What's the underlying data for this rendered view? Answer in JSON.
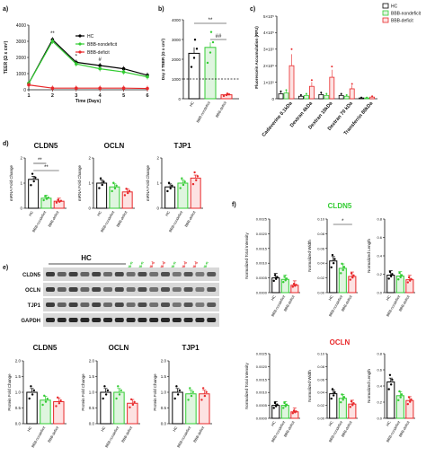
{
  "colors": {
    "hc": "#000000",
    "nondeficit": "#33cc33",
    "deficit": "#e8282a"
  },
  "series_names": {
    "hc": "HC",
    "nondeficit": "BBB-nondeficit",
    "deficit": "BBB-deficit"
  },
  "xticks_groups": [
    "HC",
    "BBB-nondeficit",
    "BBB-deficit"
  ],
  "blot": {
    "group_label": "HC",
    "lane_labels": [
      "BBB-n",
      "BBB-n",
      "BBB-d",
      "BBB-d",
      "BBB-n",
      "BBB-d",
      "BBB-d",
      "BBB-n"
    ],
    "lane_colors": [
      "#33cc33",
      "#33cc33",
      "#e8282a",
      "#e8282a",
      "#33cc33",
      "#e8282a",
      "#e8282a",
      "#33cc33"
    ],
    "rows": [
      "CLDN5",
      "OCLN",
      "TJP1",
      "GAPDH"
    ]
  },
  "chart_data": [
    {
      "panel": "a",
      "type": "line",
      "xlabel": "Time (Days)",
      "ylabel": "TEER (Ω x cm²)",
      "x": [
        1,
        2,
        3,
        4,
        5,
        6
      ],
      "xlim": [
        1,
        6
      ],
      "ylim": [
        0,
        4000
      ],
      "yticks": [
        0,
        1000,
        2000,
        3000,
        4000
      ],
      "legend": "top-left",
      "series": [
        {
          "name": "HC",
          "values": [
            400,
            3100,
            1700,
            1500,
            1300,
            900
          ]
        },
        {
          "name": "BBB-nondeficit",
          "values": [
            400,
            3000,
            1600,
            1300,
            1100,
            800
          ]
        },
        {
          "name": "BBB-deficit",
          "values": [
            300,
            100,
            100,
            100,
            100,
            80
          ]
        }
      ],
      "annotations": [
        {
          "x": 2,
          "text": "**"
        },
        {
          "x": 3,
          "text": "*"
        },
        {
          "x": 4,
          "text": "#"
        }
      ]
    },
    {
      "panel": "b",
      "type": "bar",
      "ylabel": "Day 2 TEER (Ω x cm²)",
      "ylim": [
        0,
        4000
      ],
      "yticks": [
        0,
        1000,
        2000,
        3000,
        4000
      ],
      "categories": [
        "HC",
        "BBB-nondeficit",
        "BBB-deficit"
      ],
      "values": [
        2300,
        2600,
        200
      ],
      "errors": [
        300,
        250,
        60
      ],
      "threshold": 1000,
      "annotations": [
        "**",
        "##"
      ]
    },
    {
      "panel": "c",
      "type": "bar",
      "ylabel": "Fluorescein Accumulation (RFU)",
      "ylim": [
        0,
        500000
      ],
      "yticks_labels": [
        "0",
        "1×10⁵",
        "2×10⁵",
        "3×10⁵",
        "4×10⁵",
        "5×10⁵"
      ],
      "categories": [
        "Cadaverine 0.1kDa",
        "Dextran 4kDa",
        "Dextran 10kDa",
        "Dextran 70 kDa",
        "Transferrin 80kDa"
      ],
      "legend": "top-right",
      "series": [
        {
          "name": "HC",
          "values": [
            30000,
            15000,
            25000,
            20000,
            5000
          ]
        },
        {
          "name": "BBB-nondeficit",
          "values": [
            35000,
            20000,
            20000,
            15000,
            5000
          ]
        },
        {
          "name": "BBB-deficit",
          "values": [
            200000,
            75000,
            130000,
            60000,
            10000
          ]
        }
      ]
    },
    {
      "panel": "d",
      "type": "bar",
      "title": "CLDN5",
      "ylabel": "mRNA Fold Change",
      "ylim": [
        0,
        2
      ],
      "values": [
        1.15,
        0.4,
        0.28
      ],
      "annotations": [
        "**",
        "**"
      ]
    },
    {
      "panel": "d",
      "type": "bar",
      "title": "OCLN",
      "ylabel": "mRNA Fold Change",
      "ylim": [
        0,
        2
      ],
      "values": [
        1.0,
        0.85,
        0.65
      ]
    },
    {
      "panel": "d",
      "type": "bar",
      "title": "TJP1",
      "ylabel": "mRNA Fold Change",
      "ylim": [
        0,
        2
      ],
      "values": [
        0.85,
        1.0,
        1.2
      ]
    },
    {
      "panel": "e",
      "type": "bar",
      "title": "CLDN5",
      "ylabel": "Protein Fold Change",
      "ylim": [
        0,
        2
      ],
      "values": [
        1.0,
        0.75,
        0.7
      ]
    },
    {
      "panel": "e",
      "type": "bar",
      "title": "OCLN",
      "ylabel": "Protein Fold Change",
      "ylim": [
        0,
        2
      ],
      "values": [
        1.0,
        1.0,
        0.65
      ]
    },
    {
      "panel": "e",
      "type": "bar",
      "title": "TJP1",
      "ylabel": "Protein Fold Change",
      "ylim": [
        0,
        2
      ],
      "values": [
        1.0,
        0.95,
        0.95
      ]
    },
    {
      "panel": "f",
      "type": "bar",
      "group": "CLDN5",
      "ylabel": "Normalized Total Intensity",
      "ylim": [
        0,
        0.0025
      ],
      "yticks": [
        "0.0000",
        "0.0005",
        "0.0010",
        "0.0015",
        "0.0020",
        "0.0025"
      ],
      "values": [
        0.0005,
        0.00045,
        0.00025
      ]
    },
    {
      "panel": "f",
      "type": "bar",
      "group": "CLDN5",
      "ylabel": "Normalized Width",
      "ylim": [
        0,
        0.1
      ],
      "yticks": [
        "0.00",
        "0.02",
        "0.04",
        "0.06",
        "0.08",
        "0.10"
      ],
      "values": [
        0.043,
        0.033,
        0.022
      ],
      "annotations": [
        "*"
      ]
    },
    {
      "panel": "f",
      "type": "bar",
      "group": "CLDN5",
      "ylabel": "Normalized Length",
      "ylim": [
        0,
        0.8
      ],
      "yticks": [
        "0.0",
        "0.2",
        "0.4",
        "0.6",
        "0.8"
      ],
      "values": [
        0.19,
        0.18,
        0.14
      ]
    },
    {
      "panel": "f",
      "type": "bar",
      "group": "OCLN",
      "ylabel": "Normalized Total Intensity",
      "ylim": [
        0,
        0.0025
      ],
      "yticks": [
        "0.0000",
        "0.0005",
        "0.0010",
        "0.0015",
        "0.0020",
        "0.0025"
      ],
      "values": [
        0.0005,
        0.0005,
        0.00025
      ]
    },
    {
      "panel": "f",
      "type": "bar",
      "group": "OCLN",
      "ylabel": "Normalized Width",
      "ylim": [
        0,
        0.1
      ],
      "yticks": [
        "0.00",
        "0.02",
        "0.04",
        "0.06",
        "0.08",
        "0.10"
      ],
      "values": [
        0.038,
        0.031,
        0.022
      ]
    },
    {
      "panel": "f",
      "type": "bar",
      "group": "OCLN",
      "ylabel": "Normalized Length",
      "ylim": [
        0,
        0.8
      ],
      "yticks": [
        "0.0",
        "0.2",
        "0.4",
        "0.6",
        "0.8"
      ],
      "values": [
        0.45,
        0.28,
        0.22
      ]
    }
  ]
}
